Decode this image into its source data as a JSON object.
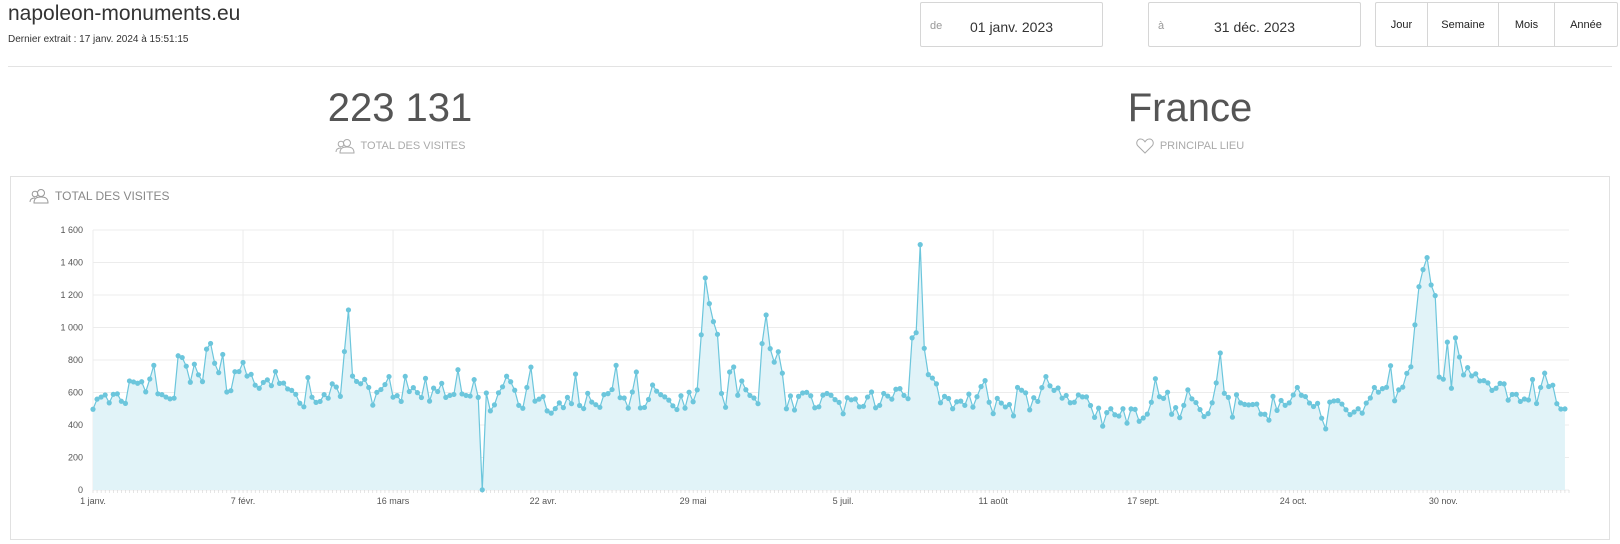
{
  "header": {
    "site_name": "napoleon-monuments.eu",
    "last_extract": "Dernier extrait : 17 janv. 2024 à 15:51:15"
  },
  "date_range": {
    "from_label": "de",
    "from_value": "01 janv. 2023",
    "to_label": "à",
    "to_value": "31 déc. 2023"
  },
  "period_buttons": [
    "Jour",
    "Semaine",
    "Mois",
    "Année"
  ],
  "kpis": {
    "total_visits": {
      "value": "223 131",
      "label": "TOTAL DES VISITES",
      "icon": "users-icon"
    },
    "main_place": {
      "value": "France",
      "label": "PRINCIPAL LIEU",
      "icon": "heart-icon"
    }
  },
  "panel": {
    "title": "TOTAL DES VISITES",
    "icon": "users-icon"
  },
  "colors": {
    "line": "#6cc6dc",
    "fill": "#e1f3f8",
    "grid": "#ececec"
  },
  "chart_data": {
    "type": "area",
    "x_unit": "day of year 2023",
    "x_tick_days": [
      1,
      38,
      75,
      112,
      149,
      186,
      223,
      260,
      297,
      334
    ],
    "x_tick_labels": [
      "1 janv.",
      "7 févr.",
      "16 mars",
      "22 avr.",
      "29 mai",
      "5 juil.",
      "11 août",
      "17 sept.",
      "24 oct.",
      "30 nov."
    ],
    "y_ticks": [
      0,
      200,
      400,
      600,
      800,
      1000,
      1200,
      1400,
      1600
    ],
    "y_tick_labels": [
      "0",
      "200",
      "400",
      "600",
      "800",
      "1 000",
      "1 200",
      "1 400",
      "1 600"
    ],
    "ylim": [
      0,
      1600
    ],
    "xlim": [
      1,
      365
    ],
    "grid": true,
    "legend": "none",
    "series": [
      {
        "values": [
          497,
          559,
          572,
          585,
          536,
          589,
          592,
          546,
          533,
          671,
          665,
          657,
          666,
          604,
          683,
          767,
          592,
          587,
          572,
          561,
          565,
          826,
          815,
          762,
          663,
          774,
          709,
          667,
          867,
          902,
          780,
          722,
          834,
          603,
          611,
          728,
          729,
          785,
          701,
          712,
          645,
          626,
          662,
          678,
          642,
          729,
          656,
          658,
          622,
          613,
          589,
          534,
          512,
          692,
          571,
          539,
          545,
          587,
          565,
          653,
          634,
          576,
          852,
          1108,
          701,
          668,
          654,
          681,
          631,
          522,
          601,
          618,
          649,
          698,
          571,
          581,
          545,
          699,
          606,
          630,
          599,
          569,
          687,
          547,
          627,
          606,
          656,
          570,
          582,
          588,
          740,
          591,
          582,
          578,
          679,
          570,
          1,
          597,
          487,
          524,
          598,
          635,
          700,
          666,
          614,
          521,
          503,
          631,
          756,
          547,
          559,
          575,
          487,
          473,
          501,
          536,
          507,
          570,
          531,
          713,
          520,
          501,
          595,
          541,
          525,
          509,
          587,
          593,
          618,
          767,
          568,
          566,
          504,
          603,
          726,
          505,
          508,
          557,
          646,
          608,
          587,
          573,
          553,
          518,
          495,
          580,
          504,
          602,
          543,
          616,
          955,
          1305,
          1147,
          1036,
          958,
          594,
          509,
          726,
          757,
          583,
          671,
          617,
          582,
          566,
          531,
          901,
          1077,
          870,
          787,
          851,
          719,
          500,
          579,
          492,
          576,
          597,
          601,
          580,
          506,
          512,
          584,
          594,
          583,
          556,
          539,
          469,
          568,
          555,
          560,
          512,
          515,
          572,
          603,
          506,
          521,
          594,
          578,
          559,
          620,
          624,
          582,
          562,
          936,
          968,
          1510,
          872,
          710,
          689,
          653,
          537,
          576,
          563,
          500,
          543,
          547,
          521,
          590,
          510,
          574,
          636,
          673,
          540,
          470,
          564,
          535,
          511,
          526,
          456,
          631,
          614,
          598,
          493,
          568,
          545,
          630,
          698,
          641,
          613,
          628,
          565,
          582,
          537,
          540,
          585,
          573,
          573,
          520,
          447,
          504,
          393,
          476,
          500,
          463,
          455,
          500,
          411,
          499,
          496,
          423,
          443,
          467,
          540,
          685,
          574,
          564,
          602,
          466,
          507,
          445,
          521,
          616,
          561,
          538,
          495,
          452,
          470,
          537,
          659,
          843,
          595,
          570,
          448,
          586,
          536,
          527,
          524,
          526,
          529,
          467,
          466,
          430,
          576,
          490,
          551,
          521,
          536,
          585,
          631,
          583,
          575,
          535,
          514,
          533,
          442,
          376,
          541,
          548,
          550,
          529,
          494,
          464,
          480,
          500,
          473,
          535,
          566,
          631,
          602,
          624,
          632,
          765,
          549,
          616,
          633,
          718,
          758,
          1016,
          1251,
          1356,
          1430,
          1262,
          1196,
          695,
          682,
          910,
          626,
          936,
          818,
          708,
          753,
          702,
          715,
          671,
          673,
          659,
          613,
          626,
          656,
          653,
          553,
          588,
          589,
          545,
          560,
          554,
          680,
          532,
          631,
          719,
          637,
          645,
          531,
          498,
          499
        ]
      }
    ]
  }
}
